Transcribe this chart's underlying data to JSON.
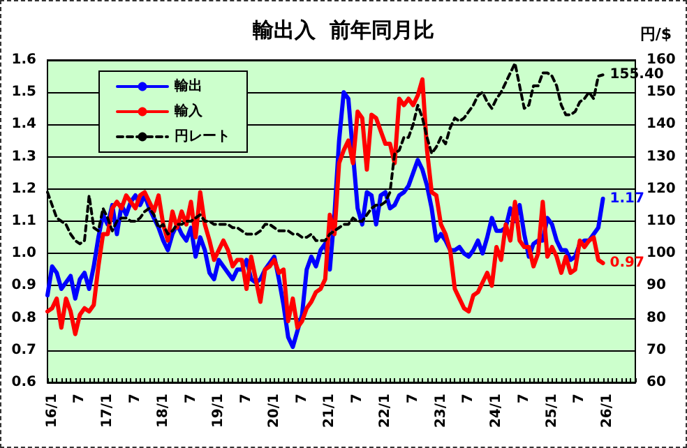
{
  "chart_data": {
    "type": "line",
    "title": "輸出入  前年同月比",
    "y2label": "円/$",
    "categories": [
      null,
      "16/1",
      null,
      null,
      null,
      null,
      null,
      "7",
      null,
      null,
      null,
      null,
      null,
      "17/1",
      null,
      null,
      null,
      null,
      null,
      "7",
      null,
      null,
      null,
      null,
      null,
      "18/1",
      null,
      null,
      null,
      null,
      null,
      "7",
      null,
      null,
      null,
      null,
      null,
      "19/1",
      null,
      null,
      null,
      null,
      null,
      "7",
      null,
      null,
      null,
      null,
      null,
      "20/1",
      null,
      null,
      null,
      null,
      null,
      "7",
      null,
      null,
      null,
      null,
      null,
      "21/1",
      null,
      null,
      null,
      null,
      null,
      "7",
      null,
      null,
      null,
      null,
      null,
      "22/1",
      null,
      null,
      null,
      null,
      null,
      "7",
      null,
      null,
      null,
      null,
      null,
      "23/1",
      null,
      null,
      null,
      null,
      null,
      "7",
      null,
      null,
      null,
      null,
      null,
      "24/1",
      null,
      null,
      null,
      null,
      null,
      "7",
      null,
      null,
      null,
      null,
      null,
      "25/1",
      null,
      null,
      null,
      null,
      null,
      "7",
      null,
      null,
      null,
      null,
      null,
      "26/1",
      null,
      null,
      null,
      null,
      null,
      null
    ],
    "series": [
      {
        "name": "輸出",
        "color": "#0000ff",
        "line_style": "solid",
        "values": [
          0.87,
          0.96,
          0.94,
          0.89,
          0.91,
          0.93,
          0.86,
          0.92,
          0.94,
          0.89,
          0.96,
          1.05,
          1.12,
          1.09,
          1.15,
          1.06,
          1.15,
          1.12,
          1.16,
          1.18,
          1.15,
          1.18,
          1.14,
          1.11,
          1.08,
          1.04,
          1.01,
          1.06,
          1.09,
          1.06,
          1.04,
          1.08,
          0.99,
          1.05,
          1.01,
          0.94,
          0.92,
          0.98,
          0.96,
          0.94,
          0.92,
          0.95,
          0.95,
          0.98,
          0.92,
          0.91,
          0.92,
          0.95,
          0.97,
          0.99,
          0.92,
          0.84,
          0.74,
          0.71,
          0.76,
          0.81,
          0.95,
          0.99,
          0.96,
          1.01,
          1.03,
          0.95,
          1.12,
          1.35,
          1.5,
          1.48,
          1.31,
          1.14,
          1.09,
          1.19,
          1.18,
          1.09,
          1.18,
          1.19,
          1.14,
          1.15,
          1.18,
          1.19,
          1.21,
          1.25,
          1.29,
          1.26,
          1.21,
          1.14,
          1.04,
          1.06,
          1.04,
          1.01,
          1.01,
          1.02,
          1.0,
          0.99,
          1.01,
          1.04,
          1.0,
          1.05,
          1.11,
          1.07,
          1.07,
          1.08,
          1.14,
          1.1,
          1.15,
          1.06,
          0.99,
          1.03,
          1.04,
          1.04,
          1.11,
          1.09,
          1.04,
          1.01,
          1.01,
          0.98,
          0.99,
          1.03,
          1.04,
          1.04,
          1.06,
          1.08,
          1.17,
          null,
          null,
          null,
          null,
          null,
          null,
          null
        ],
        "value_labels": [
          null,
          null,
          null,
          null,
          null,
          null,
          null,
          null,
          null,
          null,
          null,
          null,
          null,
          null,
          null,
          null,
          null,
          null,
          null,
          null,
          null,
          null,
          null,
          null,
          null,
          null,
          null,
          null,
          null,
          null,
          null,
          null,
          null,
          null,
          null,
          null,
          null,
          null,
          null,
          null,
          null,
          null,
          null,
          null,
          null,
          null,
          null,
          null,
          null,
          null,
          null,
          null,
          null,
          null,
          null,
          null,
          null,
          null,
          null,
          null,
          null,
          null,
          null,
          null,
          null,
          null,
          null,
          null,
          null,
          null,
          null,
          null,
          null,
          null,
          null,
          null,
          null,
          null,
          null,
          null,
          null,
          null,
          null,
          null,
          null,
          null,
          null,
          null,
          null,
          null,
          null,
          null,
          null,
          null,
          null,
          null,
          null,
          null,
          null,
          null,
          null,
          null,
          null,
          null,
          null,
          null,
          null,
          null,
          null,
          null,
          null,
          null,
          null,
          null,
          null,
          null,
          null,
          null,
          null,
          null,
          "1.17",
          null,
          null,
          null,
          null,
          null,
          null,
          null
        ]
      },
      {
        "name": "輸入",
        "color": "#ff0000",
        "line_style": "solid",
        "values": [
          0.82,
          0.83,
          0.86,
          0.77,
          0.86,
          0.82,
          0.75,
          0.81,
          0.83,
          0.82,
          0.84,
          0.96,
          1.06,
          1.06,
          1.14,
          1.16,
          1.14,
          1.18,
          1.16,
          1.14,
          1.18,
          1.19,
          1.16,
          1.13,
          1.18,
          1.09,
          1.04,
          1.13,
          1.08,
          1.13,
          1.09,
          1.16,
          1.05,
          1.19,
          1.09,
          1.04,
          0.98,
          1.01,
          1.04,
          1.01,
          0.96,
          0.98,
          0.98,
          0.89,
          0.99,
          0.92,
          0.85,
          0.95,
          0.96,
          0.98,
          0.94,
          0.95,
          0.79,
          0.86,
          0.77,
          0.79,
          0.83,
          0.85,
          0.88,
          0.89,
          0.92,
          1.12,
          1.06,
          1.28,
          1.32,
          1.35,
          1.28,
          1.44,
          1.42,
          1.26,
          1.43,
          1.42,
          1.38,
          1.34,
          1.34,
          1.28,
          1.48,
          1.46,
          1.48,
          1.46,
          1.49,
          1.54,
          1.32,
          1.19,
          1.18,
          1.09,
          1.06,
          1.01,
          0.89,
          0.86,
          0.83,
          0.82,
          0.87,
          0.88,
          0.91,
          0.94,
          0.9,
          1.02,
          0.98,
          1.09,
          1.04,
          1.16,
          1.04,
          1.02,
          1.02,
          0.96,
          1.0,
          1.16,
          0.99,
          1.02,
          0.99,
          0.94,
          0.99,
          0.94,
          0.95,
          1.04,
          1.02,
          1.04,
          1.05,
          0.98,
          0.97,
          null,
          null,
          null,
          null,
          null,
          null,
          null
        ],
        "value_labels": [
          null,
          null,
          null,
          null,
          null,
          null,
          null,
          null,
          null,
          null,
          null,
          null,
          null,
          null,
          null,
          null,
          null,
          null,
          null,
          null,
          null,
          null,
          null,
          null,
          null,
          null,
          null,
          null,
          null,
          null,
          null,
          null,
          null,
          null,
          null,
          null,
          null,
          null,
          null,
          null,
          null,
          null,
          null,
          null,
          null,
          null,
          null,
          null,
          null,
          null,
          null,
          null,
          null,
          null,
          null,
          null,
          null,
          null,
          null,
          null,
          null,
          null,
          null,
          null,
          null,
          null,
          null,
          null,
          null,
          null,
          null,
          null,
          null,
          null,
          null,
          null,
          null,
          null,
          null,
          null,
          null,
          null,
          null,
          null,
          null,
          null,
          null,
          null,
          null,
          null,
          null,
          null,
          null,
          null,
          null,
          null,
          null,
          null,
          null,
          null,
          null,
          null,
          null,
          null,
          null,
          null,
          null,
          null,
          null,
          null,
          null,
          null,
          null,
          null,
          null,
          null,
          null,
          null,
          null,
          null,
          "0.97",
          null,
          null,
          null,
          null,
          null,
          null,
          null
        ]
      },
      {
        "name": "円レート",
        "color": "#000000",
        "axis": "y2",
        "line_style": "dashed",
        "values": [
          119,
          115,
          111,
          110,
          109,
          106,
          104,
          103,
          104,
          118,
          108,
          107,
          114,
          111,
          107,
          110,
          111,
          111,
          110,
          110,
          111,
          113,
          114,
          112,
          108,
          109,
          106,
          107,
          109,
          109,
          110,
          110,
          111,
          112,
          110,
          110,
          109,
          109,
          109,
          109,
          108,
          108,
          107,
          106,
          106,
          106,
          107,
          109,
          109,
          108,
          107,
          107,
          107,
          106,
          106,
          105,
          105,
          106,
          104,
          104,
          104,
          106,
          107,
          108,
          109,
          109,
          111,
          110,
          110,
          112,
          114,
          115,
          115,
          116,
          119,
          131,
          132,
          136,
          136,
          140,
          146,
          142,
          136,
          131,
          133,
          136,
          134,
          139,
          142,
          141,
          142,
          144,
          146,
          149,
          150,
          147,
          145,
          148,
          150,
          153,
          156,
          159,
          152,
          145,
          146,
          152,
          152,
          156,
          156,
          155,
          152,
          146,
          143,
          143,
          144,
          147,
          148,
          150,
          148,
          155,
          155.4,
          null,
          null,
          null,
          null,
          null,
          null,
          null
        ],
        "value_labels": [
          null,
          null,
          null,
          null,
          null,
          null,
          null,
          null,
          null,
          null,
          null,
          null,
          null,
          null,
          null,
          null,
          null,
          null,
          null,
          null,
          null,
          null,
          null,
          null,
          null,
          null,
          null,
          null,
          null,
          null,
          null,
          null,
          null,
          null,
          null,
          null,
          null,
          null,
          null,
          null,
          null,
          null,
          null,
          null,
          null,
          null,
          null,
          null,
          null,
          null,
          null,
          null,
          null,
          null,
          null,
          null,
          null,
          null,
          null,
          null,
          null,
          null,
          null,
          null,
          null,
          null,
          null,
          null,
          null,
          null,
          null,
          null,
          null,
          null,
          null,
          null,
          null,
          null,
          null,
          null,
          null,
          null,
          null,
          null,
          null,
          null,
          null,
          null,
          null,
          null,
          null,
          null,
          null,
          null,
          null,
          null,
          null,
          null,
          null,
          null,
          null,
          null,
          null,
          null,
          null,
          null,
          null,
          null,
          null,
          null,
          null,
          null,
          null,
          null,
          null,
          null,
          null,
          null,
          null,
          null,
          "155.40",
          null,
          null,
          null,
          null,
          null,
          null,
          null
        ]
      }
    ],
    "ylim": [
      0.6,
      1.6
    ],
    "yticks": [
      0.6,
      0.7,
      0.8,
      0.9,
      {
        "value": 1,
        "label": "1.0"
      },
      1.1,
      1.2,
      1.3,
      1.4,
      1.5,
      1.6
    ],
    "y2lim": [
      60,
      160
    ],
    "y2ticks": [
      60,
      70,
      80,
      90,
      100,
      110,
      120,
      130,
      140,
      150,
      160
    ],
    "grid": "y",
    "legend": "top left",
    "marker": "none"
  }
}
